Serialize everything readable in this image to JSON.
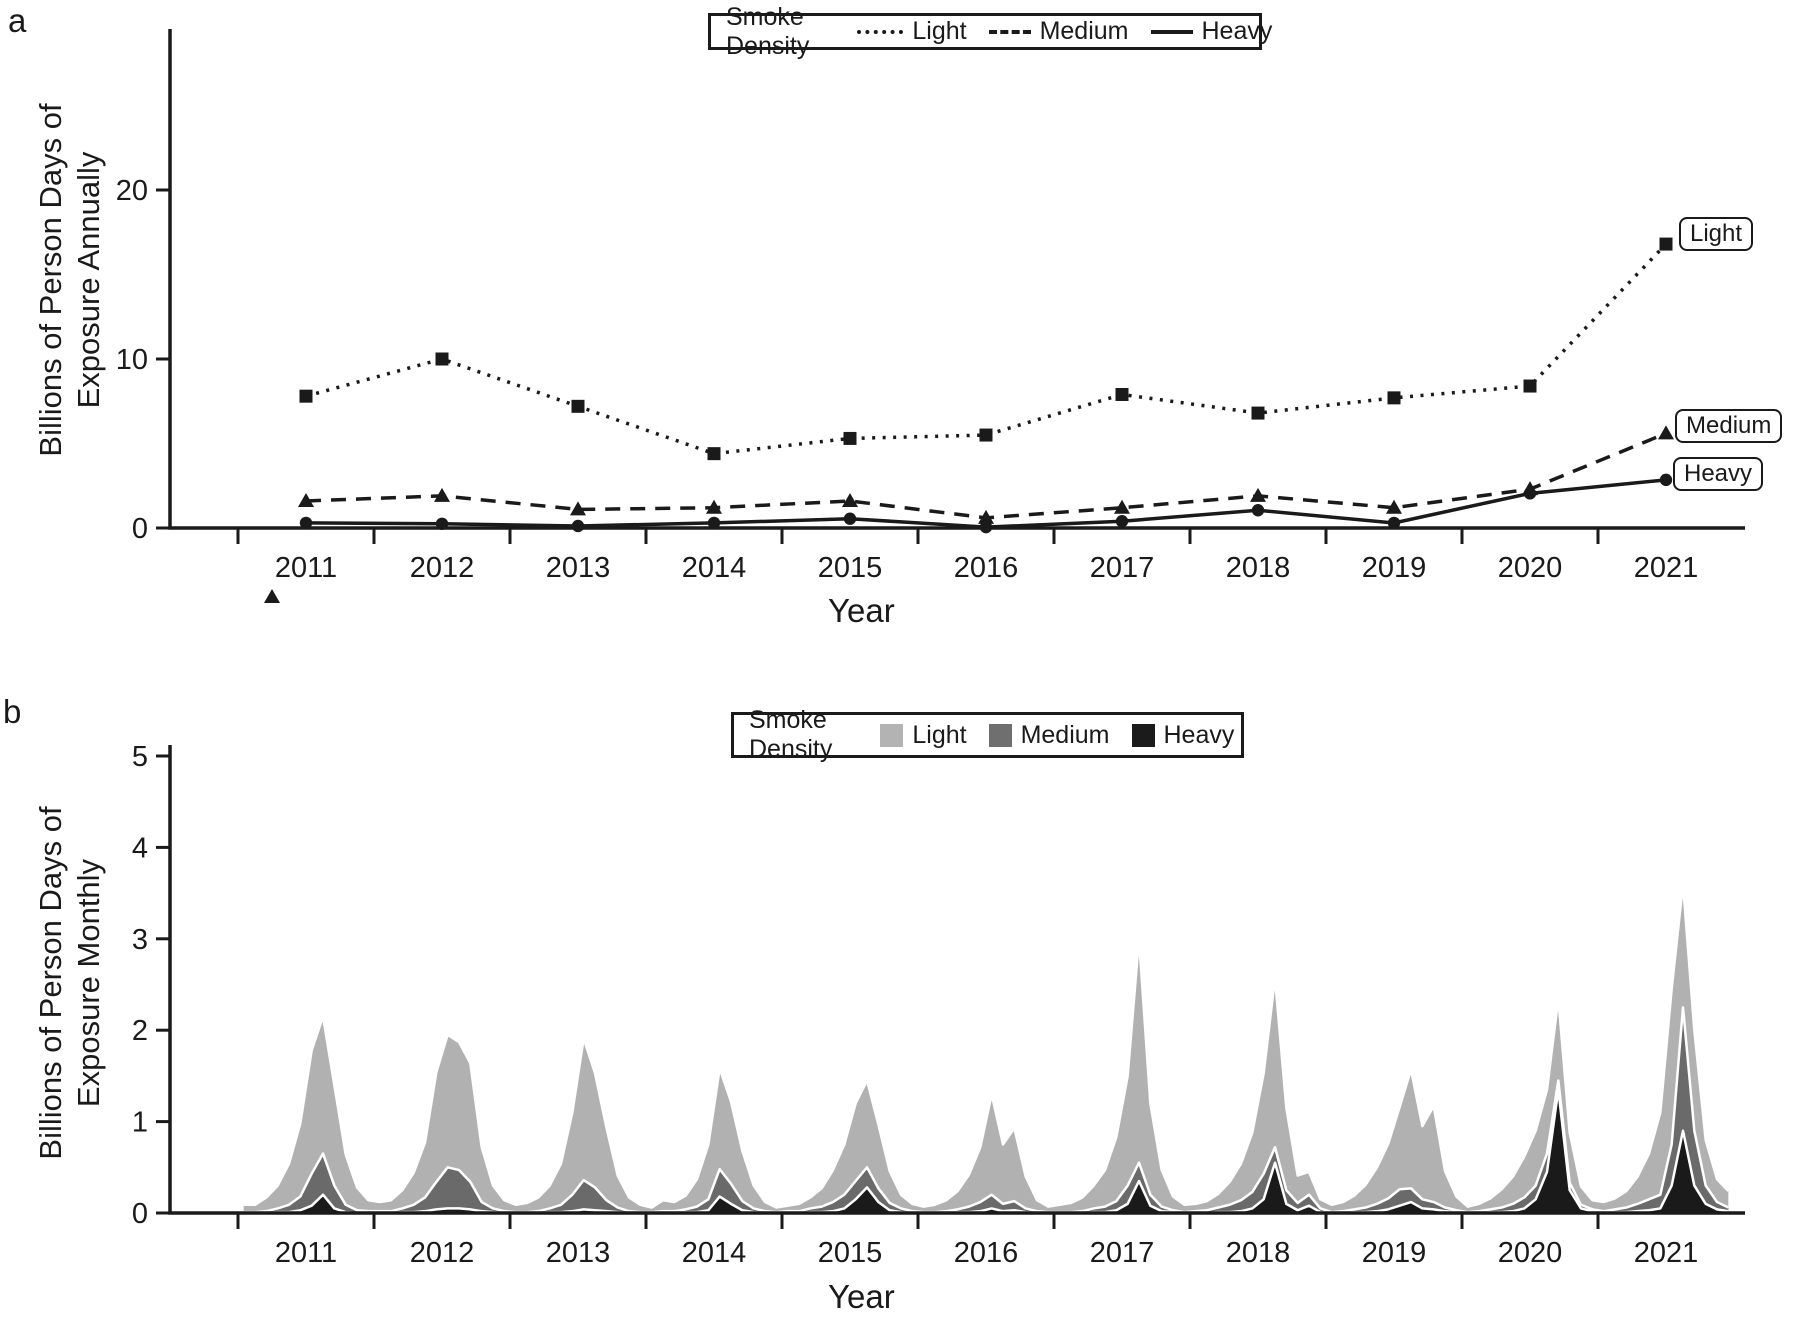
{
  "figure": {
    "panel_a_letter": "a",
    "panel_b_letter": "b",
    "colors": {
      "line": "#1a1a1a",
      "area_light": "#b1b1b1",
      "area_medium": "#6a6a6a",
      "area_heavy": "#1a1a1a",
      "separator": "#ffffff"
    }
  },
  "legend_a": {
    "title": "Smoke Density",
    "items": [
      {
        "label": "Light",
        "style": "dotted"
      },
      {
        "label": "Medium",
        "style": "dashed"
      },
      {
        "label": "Heavy",
        "style": "solid"
      }
    ]
  },
  "legend_b": {
    "title": "Smoke Density",
    "items": [
      {
        "label": "Light",
        "color": "#b3b3b3"
      },
      {
        "label": "Medium",
        "color": "#6f6f6f"
      },
      {
        "label": "Heavy",
        "color": "#1b1b1b"
      }
    ]
  },
  "chart_data": [
    {
      "id": "annual_exposure",
      "type": "line",
      "xlabel": "Year",
      "ylabel": "Billions of Person Days of Exposure Annually",
      "ylabel_lines": [
        "Billions of Person Days of",
        "Exposure Annually"
      ],
      "categories": [
        "2011",
        "2012",
        "2013",
        "2014",
        "2015",
        "2016",
        "2017",
        "2018",
        "2019",
        "2020",
        "2021"
      ],
      "y_tick_labels": [
        "0",
        "10",
        "20"
      ],
      "y_ticks": [
        0,
        10,
        20
      ],
      "ylim": [
        0,
        29.5
      ],
      "legend_position": "top",
      "grid": false,
      "series": [
        {
          "name": "Light",
          "line_style": "dotted",
          "marker": "square",
          "values": [
            7.8,
            10.0,
            7.2,
            4.4,
            5.3,
            5.5,
            7.9,
            6.8,
            7.7,
            8.4,
            16.8
          ]
        },
        {
          "name": "Medium",
          "line_style": "dashed",
          "marker": "triangle",
          "values": [
            1.6,
            1.9,
            1.1,
            1.2,
            1.6,
            0.6,
            1.2,
            1.9,
            1.2,
            2.3,
            5.6
          ]
        },
        {
          "name": "Heavy",
          "line_style": "solid",
          "marker": "circle",
          "values": [
            0.3,
            0.25,
            0.12,
            0.3,
            0.55,
            0.05,
            0.4,
            1.05,
            0.3,
            2.05,
            2.85
          ]
        }
      ],
      "end_labels": {
        "light": "Light",
        "medium": "Medium",
        "heavy": "Heavy"
      }
    },
    {
      "id": "monthly_exposure",
      "type": "area",
      "xlabel": "Year",
      "ylabel": "Billions of Person Days of Exposure Monthly",
      "ylabel_lines": [
        "Billions of Person Days of",
        "Exposure Monthly"
      ],
      "categories": [
        "2011",
        "2012",
        "2013",
        "2014",
        "2015",
        "2016",
        "2017",
        "2018",
        "2019",
        "2020",
        "2021"
      ],
      "y_tick_labels": [
        "0",
        "1",
        "2",
        "3",
        "4",
        "5"
      ],
      "y_ticks": [
        0,
        1,
        2,
        3,
        4,
        5
      ],
      "ylim": [
        0,
        5.1
      ],
      "stack_order": [
        "heavy",
        "medium",
        "light"
      ],
      "months_per_year": 12,
      "monthly": {
        "2011": {
          "light": [
            0.08,
            0.08,
            0.15,
            0.25,
            0.45,
            0.8,
            1.35,
            1.5,
            1.1,
            0.55,
            0.25,
            0.12
          ],
          "medium": [
            0.01,
            0.01,
            0.02,
            0.04,
            0.08,
            0.15,
            0.35,
            0.45,
            0.25,
            0.08,
            0.03,
            0.02
          ],
          "heavy": [
            0,
            0,
            0,
            0.01,
            0.01,
            0.03,
            0.08,
            0.2,
            0.05,
            0.01,
            0,
            0
          ]
        },
        "2012": {
          "light": [
            0.1,
            0.12,
            0.2,
            0.35,
            0.6,
            1.2,
            1.45,
            1.4,
            1.3,
            0.6,
            0.25,
            0.12
          ],
          "medium": [
            0.02,
            0.02,
            0.04,
            0.08,
            0.15,
            0.3,
            0.45,
            0.42,
            0.3,
            0.1,
            0.04,
            0.02
          ],
          "heavy": [
            0,
            0,
            0.01,
            0.01,
            0.02,
            0.04,
            0.05,
            0.05,
            0.04,
            0.02,
            0.01,
            0
          ]
        },
        "2013": {
          "light": [
            0.08,
            0.1,
            0.15,
            0.25,
            0.45,
            0.9,
            1.55,
            1.25,
            0.8,
            0.35,
            0.15,
            0.08
          ],
          "medium": [
            0.01,
            0.01,
            0.02,
            0.04,
            0.08,
            0.18,
            0.32,
            0.25,
            0.12,
            0.05,
            0.02,
            0.01
          ],
          "heavy": [
            0,
            0,
            0,
            0.01,
            0.01,
            0.02,
            0.04,
            0.03,
            0.02,
            0.01,
            0,
            0
          ]
        },
        "2014": {
          "light": [
            0.05,
            0.12,
            0.1,
            0.15,
            0.3,
            0.6,
            1.1,
            0.9,
            0.55,
            0.25,
            0.1,
            0.05
          ],
          "medium": [
            0.01,
            0.02,
            0.02,
            0.03,
            0.06,
            0.12,
            0.3,
            0.22,
            0.1,
            0.04,
            0.02,
            0.01
          ],
          "heavy": [
            0,
            0,
            0,
            0.01,
            0.01,
            0.03,
            0.18,
            0.1,
            0.03,
            0.01,
            0,
            0
          ]
        },
        "2015": {
          "light": [
            0.06,
            0.08,
            0.12,
            0.2,
            0.35,
            0.55,
            0.85,
            0.95,
            0.7,
            0.35,
            0.15,
            0.08
          ],
          "medium": [
            0.02,
            0.02,
            0.04,
            0.06,
            0.1,
            0.15,
            0.2,
            0.22,
            0.15,
            0.08,
            0.04,
            0.02
          ],
          "heavy": [
            0,
            0,
            0.01,
            0.01,
            0.02,
            0.05,
            0.15,
            0.28,
            0.12,
            0.03,
            0.01,
            0
          ]
        },
        "2016": {
          "light": [
            0.06,
            0.08,
            0.12,
            0.2,
            0.35,
            0.6,
            1.1,
            0.65,
            0.8,
            0.35,
            0.12,
            0.06
          ],
          "medium": [
            0.01,
            0.01,
            0.02,
            0.03,
            0.06,
            0.1,
            0.15,
            0.08,
            0.1,
            0.04,
            0.02,
            0.01
          ],
          "heavy": [
            0,
            0,
            0,
            0.01,
            0.01,
            0.02,
            0.05,
            0.02,
            0.03,
            0.01,
            0,
            0
          ]
        },
        "2017": {
          "light": [
            0.08,
            0.1,
            0.15,
            0.25,
            0.4,
            0.7,
            1.2,
            2.45,
            1.0,
            0.4,
            0.15,
            0.08
          ],
          "medium": [
            0.01,
            0.01,
            0.02,
            0.04,
            0.06,
            0.1,
            0.2,
            0.2,
            0.12,
            0.05,
            0.02,
            0.01
          ],
          "heavy": [
            0,
            0,
            0,
            0.01,
            0.01,
            0.03,
            0.1,
            0.35,
            0.08,
            0.02,
            0.01,
            0
          ]
        },
        "2018": {
          "light": [
            0.08,
            0.1,
            0.15,
            0.25,
            0.4,
            0.65,
            1.1,
            1.85,
            0.9,
            0.3,
            0.25,
            0.1
          ],
          "medium": [
            0.02,
            0.03,
            0.05,
            0.08,
            0.12,
            0.18,
            0.28,
            0.17,
            0.15,
            0.08,
            0.12,
            0.04
          ],
          "heavy": [
            0,
            0,
            0.01,
            0.01,
            0.02,
            0.05,
            0.15,
            0.55,
            0.1,
            0.03,
            0.08,
            0.01
          ]
        },
        "2019": {
          "light": [
            0.08,
            0.1,
            0.15,
            0.25,
            0.4,
            0.6,
            0.9,
            1.3,
            0.8,
            1.05,
            0.4,
            0.15
          ],
          "medium": [
            0.01,
            0.02,
            0.03,
            0.05,
            0.08,
            0.12,
            0.18,
            0.15,
            0.1,
            0.08,
            0.04,
            0.02
          ],
          "heavy": [
            0,
            0,
            0.01,
            0.01,
            0.02,
            0.04,
            0.08,
            0.12,
            0.05,
            0.04,
            0.02,
            0.01
          ]
        },
        "2020": {
          "light": [
            0.06,
            0.08,
            0.12,
            0.2,
            0.3,
            0.45,
            0.6,
            0.7,
            0.9,
            0.55,
            0.2,
            0.1
          ],
          "medium": [
            0.01,
            0.02,
            0.03,
            0.05,
            0.08,
            0.12,
            0.15,
            0.2,
            0.1,
            0.08,
            0.04,
            0.02
          ],
          "heavy": [
            0,
            0,
            0.01,
            0.01,
            0.02,
            0.05,
            0.15,
            0.45,
            1.35,
            0.25,
            0.05,
            0.02
          ]
        },
        "2021": {
          "light": [
            0.1,
            0.12,
            0.18,
            0.3,
            0.5,
            0.9,
            1.7,
            1.35,
            1.1,
            0.5,
            0.25,
            0.18
          ],
          "medium": [
            0.02,
            0.03,
            0.05,
            0.08,
            0.12,
            0.15,
            0.45,
            1.35,
            0.6,
            0.2,
            0.08,
            0.04
          ],
          "heavy": [
            0,
            0.01,
            0.01,
            0.02,
            0.03,
            0.05,
            0.3,
            0.9,
            0.3,
            0.1,
            0.04,
            0.02
          ]
        }
      }
    }
  ]
}
